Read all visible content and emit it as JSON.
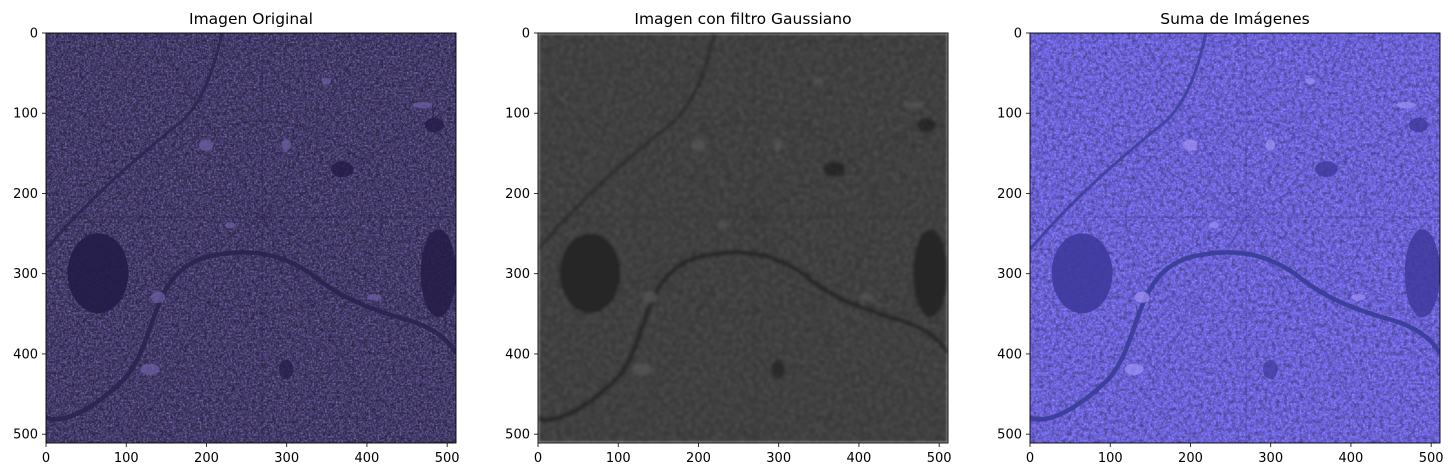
{
  "figure": {
    "panels": [
      {
        "title": "Imagen Original",
        "palette": {
          "base": "#3b3168",
          "light": "#6e5fa6",
          "dark": "#241c47",
          "river": "#2a2650"
        }
      },
      {
        "title": "Imagen con filtro Gaussiano",
        "palette": {
          "base": "#353535",
          "light": "#5a5a5a",
          "dark": "#232323",
          "river": "#262626"
        }
      },
      {
        "title": "Suma de Imágenes",
        "palette": {
          "base": "#6a5ee6",
          "light": "#9f92f5",
          "dark": "#3e3a9c",
          "river": "#3a3f9a"
        }
      }
    ],
    "axis": {
      "x_ticks": [
        "0",
        "100",
        "200",
        "300",
        "400",
        "500"
      ],
      "y_ticks": [
        "0",
        "100",
        "200",
        "300",
        "400",
        "500"
      ]
    }
  }
}
